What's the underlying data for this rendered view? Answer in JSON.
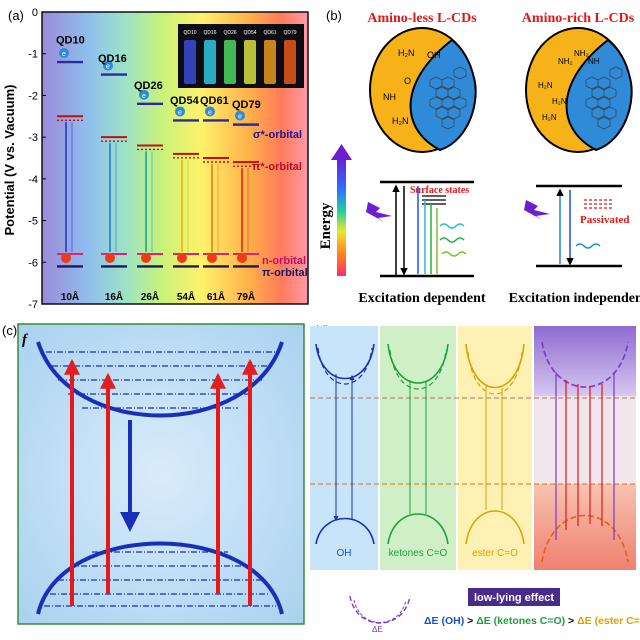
{
  "panel_a": {
    "letter": "(a)",
    "ylabel": "Potential (V vs. Vacuum)",
    "yticks": [
      "0",
      "-1",
      "-2",
      "-3",
      "-4",
      "-5",
      "-6",
      "-7"
    ],
    "xticks": [
      "10Å",
      "16Å",
      "26Å",
      "54Å",
      "61Å",
      "79Å"
    ],
    "qd_labels": [
      "QD10",
      "QD16",
      "QD26",
      "QD54",
      "QD61",
      "QD79"
    ],
    "vial_labels": [
      "QD10",
      "QD16",
      "QD26",
      "QD54",
      "QD61",
      "QD79"
    ],
    "orbitals": {
      "sigma": "σ*-orbital",
      "pi_star": "π*-orbital",
      "n": "n-orbital",
      "pi": "π-orbital"
    },
    "electron": "e"
  },
  "panel_b": {
    "letter": "(b)",
    "left_title": "Amino-less L-CDs",
    "right_title": "Amino-rich L-CDs",
    "energy_label": "Energy",
    "surface_states": "Surface states",
    "passivated": "Passivated",
    "left_caption": "Excitation dependent",
    "right_caption": "Excitation independent",
    "groups_left": [
      "OH",
      "H₂N",
      "NH",
      "H₂N",
      "O"
    ],
    "groups_right": [
      "NH₂",
      "NH₂",
      "H₂N",
      "H₂N",
      "NH",
      "H₂N"
    ]
  },
  "panel_c": {
    "letter": "(c)",
    "f_label": "f"
  },
  "panel_d": {
    "letter": "(d)",
    "labels": [
      "OH",
      "ketones C=O",
      "ester C=O"
    ],
    "low_lying": "low-lying effect",
    "delta_e": "ΔE",
    "eq_oh": "ΔE (OH)",
    "gt1": " > ",
    "eq_ketone": "ΔE (ketones C=O)",
    "gt2": " > ",
    "eq_ester": "ΔE (ester C=O )"
  }
}
